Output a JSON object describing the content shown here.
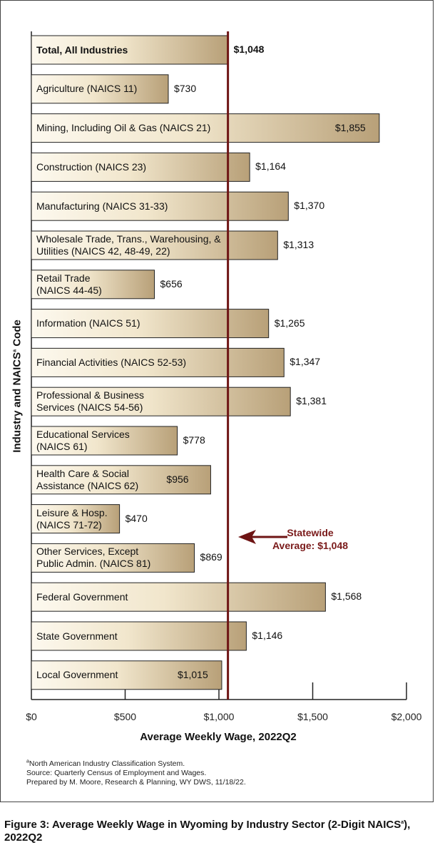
{
  "chart_data": {
    "type": "bar",
    "orientation": "horizontal",
    "categories": [
      "Total, All Industries",
      "Agriculture (NAICS 11)",
      "Mining, Including Oil & Gas (NAICS 21)",
      "Construction (NAICS 23)",
      "Manufacturing (NAICS 31-33)",
      "Wholesale Trade, Trans., Warehousing, & Utilities (NAICS 42, 48-49, 22)",
      "Retail Trade (NAICS 44-45)",
      "Information (NAICS 51)",
      "Financial Activities (NAICS 52-53)",
      "Professional & Business Services (NAICS 54-56)",
      "Educational Services (NAICS 61)",
      "Health Care & Social Assistance (NAICS 62)",
      "Leisure & Hosp. (NAICS 71-72)",
      "Other Services, Except Public Admin. (NAICS 81)",
      "Federal Government",
      "State Government",
      "Local Government"
    ],
    "values": [
      1048,
      730,
      1855,
      1164,
      1370,
      1313,
      656,
      1265,
      1347,
      1381,
      778,
      956,
      470,
      869,
      1568,
      1146,
      1015
    ],
    "value_labels": [
      "$1,048",
      "$730",
      "$1,855",
      "$1,164",
      "$1,370",
      "$1,313",
      "$656",
      "$1,265",
      "$1,347",
      "$1,381",
      "$778",
      "$956",
      "$470",
      "$869",
      "$1,568",
      "$1,146",
      "$1,015"
    ],
    "xlim": [
      0,
      2000
    ],
    "x_ticks": [
      0,
      500,
      1000,
      1500,
      2000
    ],
    "x_tick_labels": [
      "$0",
      "$500",
      "$1,000",
      "$1,500",
      "$2,000"
    ],
    "xlabel": "Average Weekly Wage, 2022Q2",
    "ylabel": "Industry and NAICSª Code",
    "reference_line": {
      "value": 1048,
      "label_line1": "Statewide",
      "label_line2": "Average: $1,048",
      "color": "#6e1414"
    },
    "colors": {
      "bar_light": "#fdf9ef",
      "bar_dark": "#b8a078",
      "bar_border": "#222222"
    },
    "grid": false,
    "legend": "none"
  },
  "bar_text": [
    [
      "Total, All Industries"
    ],
    [
      "Agriculture (NAICS 11)"
    ],
    [
      "Mining, Including Oil & Gas (NAICS 21)"
    ],
    [
      "Construction (NAICS 23)"
    ],
    [
      "Manufacturing (NAICS 31-33)"
    ],
    [
      "Wholesale Trade, Trans., Warehousing, &",
      "Utilities (NAICS 42, 48-49, 22)"
    ],
    [
      "Retail Trade",
      "(NAICS 44-45)"
    ],
    [
      "Information (NAICS 51)"
    ],
    [
      "Financial Activities (NAICS 52-53)"
    ],
    [
      "Professional & Business",
      "Services (NAICS 54-56)"
    ],
    [
      "Educational Services",
      "(NAICS 61)"
    ],
    [
      "Health Care & Social",
      "Assistance (NAICS 62)"
    ],
    [
      "Leisure & Hosp.",
      "(NAICS 71-72)"
    ],
    [
      "Other Services, Except",
      "Public Admin. (NAICS 81)"
    ],
    [
      "Federal Government"
    ],
    [
      "State Government"
    ],
    [
      "Local Government"
    ]
  ],
  "labels": {
    "ylabel_main": "Industry and NAICS",
    "ylabel_sup": "a",
    "ylabel_tail": " Code"
  },
  "notes": {
    "sup": "a",
    "line1": "North American Industry Classification System.",
    "line2": "Source: Quarterly Census of Employment and Wages.",
    "line3": "Prepared by M. Moore, Research & Planning, WY DWS, 11/18/22."
  },
  "caption": {
    "part1": "Figure 3: Average Weekly Wage in Wyoming by Industry Sector (2-Digit NAICS",
    "sup": "a",
    "part2": "), 2022Q2"
  }
}
